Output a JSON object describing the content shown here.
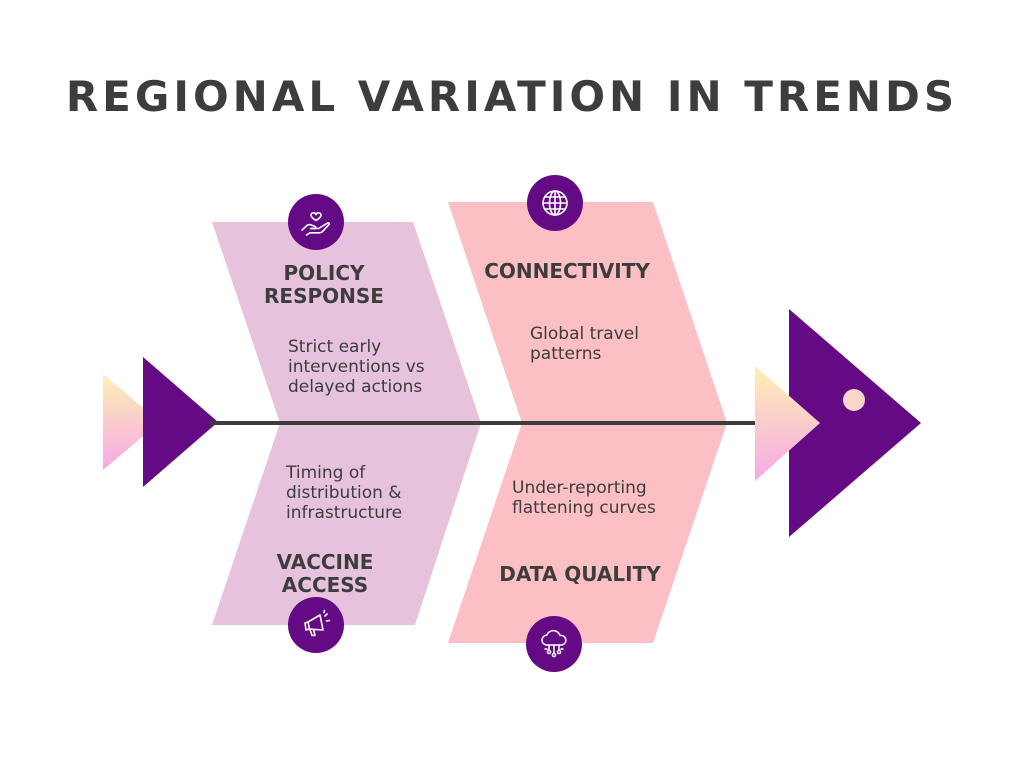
{
  "title": "REGIONAL VARIATION IN TRENDS",
  "colors": {
    "title": "#3d3d3d",
    "purple": "#640a84",
    "lilac": "#e6c2dc",
    "pink": "#fcbfc4",
    "spine": "#3d3d3d",
    "dot": "#fbd4c9"
  },
  "causes": [
    {
      "heading": "POLICY\nRESPONSE",
      "detail": "Strict early\ninterventions vs\ndelayed actions",
      "icon": "hand-heart-icon"
    },
    {
      "heading": "CONNECTIVITY",
      "detail": "Global travel\npatterns",
      "icon": "globe-icon"
    },
    {
      "heading": "VACCINE\nACCESS",
      "detail": "Timing of\ndistribution &\ninfrastructure",
      "icon": "megaphone-icon"
    },
    {
      "heading": "DATA QUALITY",
      "detail": "Under-reporting\nflattening curves",
      "icon": "cloud-network-icon"
    }
  ]
}
